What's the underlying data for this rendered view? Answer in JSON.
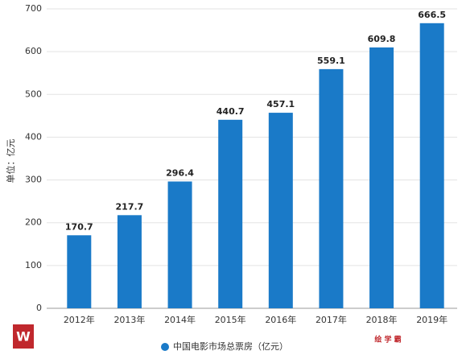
{
  "chart_data": {
    "type": "bar",
    "ylabel": "单位：亿元",
    "categories": [
      "2012年",
      "2013年",
      "2014年",
      "2015年",
      "2016年",
      "2017年",
      "2018年",
      "2019年"
    ],
    "series": [
      {
        "name": "中国电影市场总票房（亿元）",
        "color": "#1a7ac8",
        "values": [
          170.7,
          217.7,
          296.4,
          440.7,
          457.1,
          559.1,
          609.8,
          666.5
        ]
      }
    ],
    "ylim": [
      0,
      700
    ],
    "yticks": [
      0,
      100,
      200,
      300,
      400,
      500,
      600,
      700
    ],
    "grid": true,
    "legend": "bottom",
    "annotations": [
      "绘 学 霸"
    ]
  }
}
